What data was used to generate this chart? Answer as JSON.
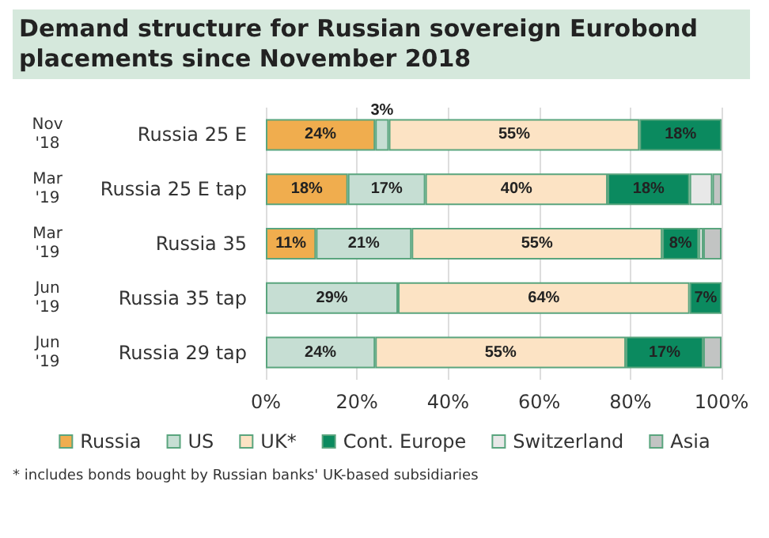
{
  "chart_data": {
    "type": "bar",
    "orientation": "horizontal",
    "stacked": true,
    "title": "Demand structure for Russian sovereign Eurobond placements since November 2018",
    "categories": [
      "Russia 25 E",
      "Russia 25 E tap",
      "Russia 35",
      "Russia 35 tap",
      "Russia 29 tap"
    ],
    "series": [
      {
        "name": "Russia",
        "color": "#f0ad4e",
        "values": [
          24,
          18,
          11,
          null,
          null
        ],
        "value_labels": [
          "24%",
          "18%",
          "11%",
          null,
          null
        ]
      },
      {
        "name": "US",
        "color": "#c6ded3",
        "values": [
          3,
          17,
          21,
          29,
          24
        ],
        "value_labels": [
          "3%",
          "17%",
          "21%",
          "29%",
          "24%"
        ]
      },
      {
        "name": "UK*",
        "color": "#fce3c4",
        "values": [
          55,
          40,
          55,
          64,
          55
        ],
        "value_labels": [
          "55%",
          "40%",
          "55%",
          "64%",
          "55%"
        ]
      },
      {
        "name": "Cont. Europe",
        "color": "#0b8a5f",
        "values": [
          18,
          18,
          8,
          7,
          17
        ],
        "value_labels": [
          "18%",
          "18%",
          "8%",
          "7%",
          "17%"
        ]
      },
      {
        "name": "Switzerland",
        "color": "#e8e8e8",
        "values": [
          null,
          5,
          1,
          null,
          null
        ]
      },
      {
        "name": "Asia",
        "color": "#c2c4c3",
        "values": [
          null,
          2,
          4,
          null,
          4
        ]
      }
    ],
    "xlim": [
      0,
      100
    ],
    "xticks": [
      {
        "value": 0,
        "label": "0%"
      },
      {
        "value": 20,
        "label": "20%"
      },
      {
        "value": 40,
        "label": "40%"
      },
      {
        "value": 60,
        "label": "60%"
      },
      {
        "value": 80,
        "label": "80%"
      },
      {
        "value": 100,
        "label": "100%"
      }
    ],
    "grid": "x",
    "legend": "bottom",
    "annotations": [
      "Nov '18",
      "Mar '19",
      "Mar '19",
      "Jun '19",
      "Jun '19",
      "* includes bonds bought by Russian banks' UK-based subsidiaries"
    ]
  }
}
